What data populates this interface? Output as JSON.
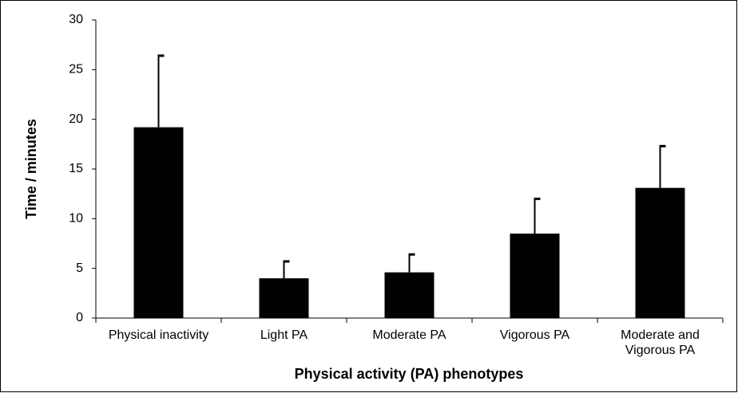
{
  "chart_data": {
    "type": "bar",
    "categories": [
      "Physical inactivity",
      "Light PA",
      "Moderate PA",
      "Vigorous PA",
      "Moderate and Vigorous PA"
    ],
    "values": [
      19.2,
      4.0,
      4.6,
      8.5,
      13.1
    ],
    "errors": [
      7.2,
      1.7,
      1.8,
      3.5,
      4.2
    ],
    "color": "#000000",
    "xlabel": "Physical activity (PA) phenotypes",
    "ylabel": "Time / minutes",
    "ylim": [
      0,
      30
    ],
    "yticks": [
      0,
      5,
      10,
      15,
      20,
      25,
      30
    ],
    "grid": false
  }
}
